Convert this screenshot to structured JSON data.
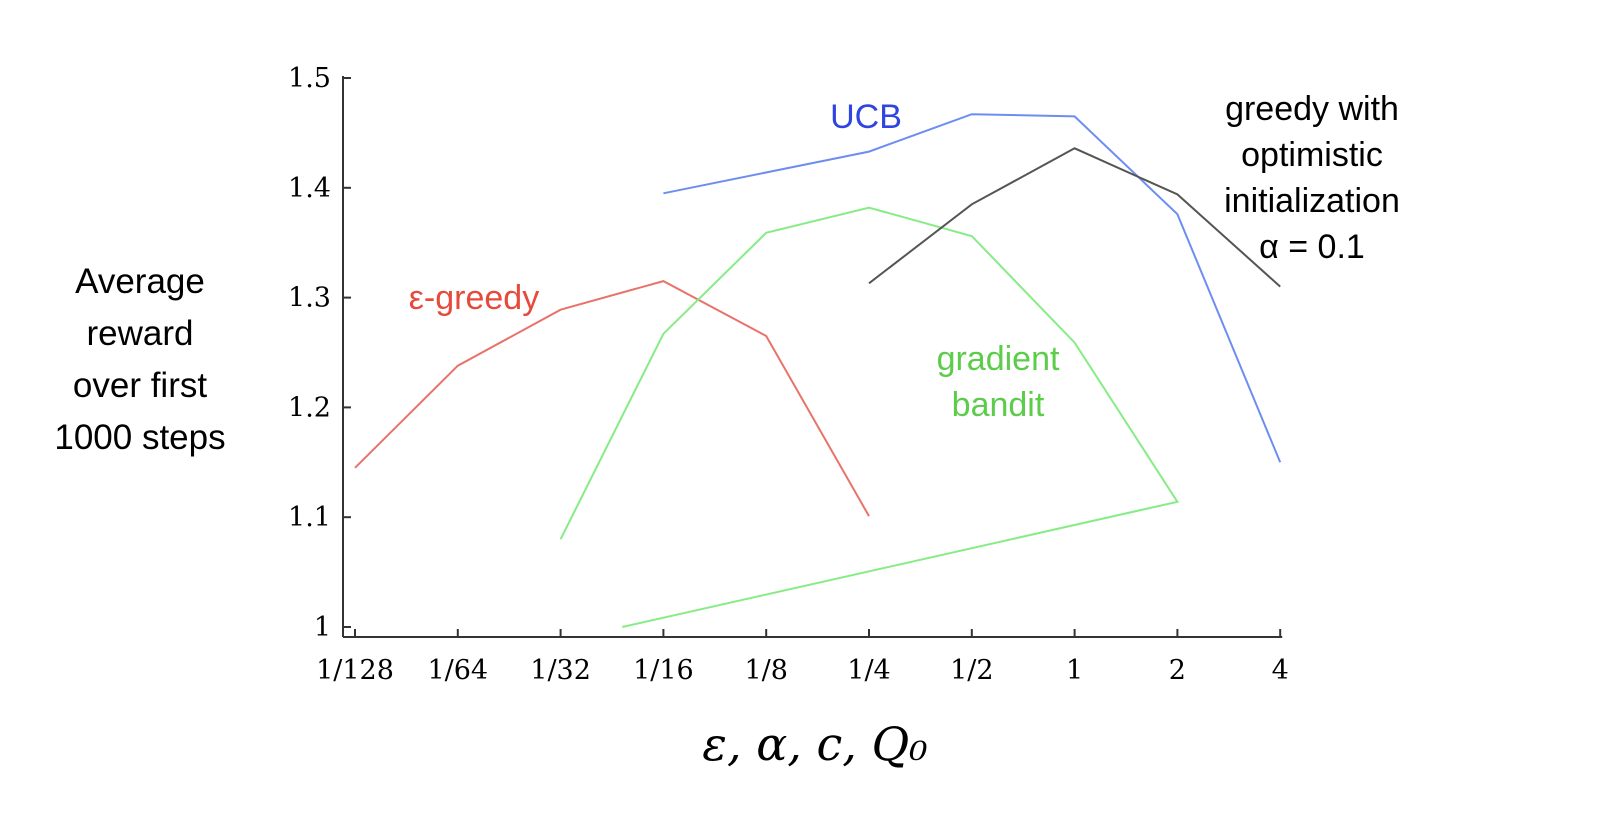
{
  "chart_data": {
    "type": "line",
    "categories": [
      "1/128",
      "1/64",
      "1/32",
      "1/16",
      "1/8",
      "1/4",
      "1/2",
      "1",
      "2",
      "4"
    ],
    "ylim": [
      1,
      1.5
    ],
    "yticks": [
      "1",
      "1.1",
      "1.2",
      "1.3",
      "1.4",
      "1.5"
    ],
    "ytick_values": [
      1.0,
      1.1,
      1.2,
      1.3,
      1.4,
      1.5
    ],
    "ylabel_lines": [
      "Average",
      "reward",
      "over first",
      "1000 steps"
    ],
    "xlabel": "ε,  α,  c,  Q₀",
    "grid": false,
    "series": [
      {
        "name": "ε-greedy",
        "color": "#e8736a",
        "label_color": "#e64a3b",
        "label_lines": [
          "ε-greedy"
        ],
        "points": [
          {
            "x": "1/128",
            "y": 1.145
          },
          {
            "x": "1/64",
            "y": 1.238
          },
          {
            "x": "1/32",
            "y": 1.289
          },
          {
            "x": "1/16",
            "y": 1.315
          },
          {
            "x": "1/8",
            "y": 1.265
          },
          {
            "x": "1/4",
            "y": 1.101
          }
        ]
      },
      {
        "name": "UCB",
        "color": "#6d8ef0",
        "label_color": "#2f44e0",
        "label_lines": [
          "UCB"
        ],
        "points": [
          {
            "x": "1/16",
            "y": 1.395
          },
          {
            "x": "1/4",
            "y": 1.433
          },
          {
            "x": "1/2",
            "y": 1.467
          },
          {
            "x": "1",
            "y": 1.465
          },
          {
            "x": "2",
            "y": 1.376
          },
          {
            "x": "4",
            "y": 1.15
          }
        ]
      },
      {
        "name": "gradient bandit",
        "color": "#86ec86",
        "label_color": "#5ccc4a",
        "label_lines": [
          "gradient",
          "bandit"
        ],
        "points": [
          {
            "x": "1/32",
            "y": 1.08
          },
          {
            "x": "1/16",
            "y": 1.267
          },
          {
            "x": "1/8",
            "y": 1.359
          },
          {
            "x": "1/4",
            "y": 1.382
          },
          {
            "x": "1/2",
            "y": 1.356
          },
          {
            "x": "1",
            "y": 1.259
          },
          {
            "x": "2",
            "y": 1.114
          },
          {
            "x": 2.6,
            "y": 1.0
          }
        ]
      },
      {
        "name": "greedy with optimistic initialization α = 0.1",
        "color": "#555555",
        "label_color": "#000000",
        "label_lines": [
          "greedy with",
          "optimistic",
          "initialization",
          "α = 0.1"
        ],
        "points": [
          {
            "x": "1/4",
            "y": 1.313
          },
          {
            "x": "1/2",
            "y": 1.385
          },
          {
            "x": "1",
            "y": 1.436
          },
          {
            "x": "2",
            "y": 1.394
          },
          {
            "x": "4",
            "y": 1.31
          }
        ]
      }
    ]
  }
}
